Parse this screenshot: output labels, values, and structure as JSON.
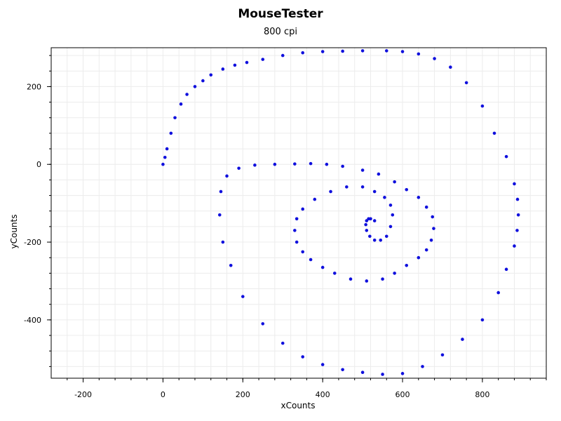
{
  "header": {
    "title": "MouseTester",
    "subtitle": "800 cpi"
  },
  "colors": {
    "series": "#1010dd",
    "grid": "#ececec",
    "axis": "#000000"
  },
  "chart_data": {
    "type": "scatter",
    "title": "MouseTester",
    "subtitle": "800 cpi",
    "xlabel": "xCounts",
    "ylabel": "yCounts",
    "xlim": [
      -280,
      960
    ],
    "ylim": [
      -550,
      300
    ],
    "xticks": [
      -200,
      0,
      200,
      400,
      600,
      800
    ],
    "yticks": [
      -400,
      -200,
      0,
      200
    ],
    "xtick_labels": [
      "-200",
      "0",
      "200",
      "400",
      "600",
      "800"
    ],
    "ytick_labels": [
      "-400",
      "-200",
      "0",
      "200"
    ],
    "grid": true,
    "series": [
      {
        "color": "#1010dd",
        "x": [
          0,
          5,
          10,
          20,
          30,
          45,
          60,
          80,
          100,
          120,
          150,
          180,
          210,
          250,
          300,
          350,
          400,
          450,
          500,
          560,
          600,
          640,
          680,
          720,
          760,
          800,
          830,
          860,
          880,
          888,
          890,
          887,
          880,
          860,
          840,
          800,
          750,
          700,
          650,
          600,
          550,
          500,
          450,
          400,
          350,
          300,
          250,
          200,
          170,
          150,
          142,
          145,
          160,
          190,
          230,
          280,
          330,
          370,
          410,
          450,
          500,
          540,
          580,
          610,
          640,
          660,
          675,
          678,
          672,
          660,
          640,
          610,
          580,
          550,
          510,
          470,
          430,
          400,
          370,
          350,
          335,
          330,
          335,
          350,
          380,
          420,
          460,
          500,
          530,
          555,
          570,
          575,
          570,
          560,
          545,
          530,
          518,
          510,
          508,
          510,
          515,
          520,
          530
        ],
        "y": [
          0,
          18,
          40,
          80,
          120,
          155,
          180,
          200,
          215,
          230,
          245,
          255,
          262,
          270,
          280,
          287,
          290,
          291,
          292,
          292,
          290,
          284,
          272,
          250,
          210,
          150,
          80,
          20,
          -50,
          -90,
          -130,
          -170,
          -210,
          -270,
          -330,
          -400,
          -450,
          -490,
          -520,
          -538,
          -540,
          -535,
          -528,
          -515,
          -495,
          -460,
          -410,
          -340,
          -260,
          -200,
          -130,
          -70,
          -30,
          -10,
          -2,
          0,
          1,
          2,
          0,
          -5,
          -15,
          -25,
          -45,
          -65,
          -85,
          -110,
          -135,
          -165,
          -195,
          -220,
          -240,
          -260,
          -280,
          -295,
          -300,
          -295,
          -280,
          -265,
          -245,
          -225,
          -200,
          -170,
          -140,
          -115,
          -90,
          -70,
          -58,
          -58,
          -70,
          -85,
          -105,
          -130,
          -160,
          -185,
          -195,
          -195,
          -185,
          -170,
          -155,
          -145,
          -140,
          -140,
          -145
        ]
      }
    ]
  }
}
